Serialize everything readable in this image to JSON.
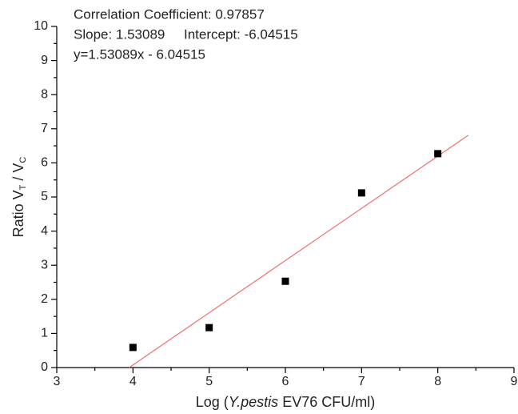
{
  "chart_data": {
    "type": "scatter",
    "annotations": [
      "Correlation Coefficient: 0.97857",
      "Slope: 1.53089     Intercept: -6.04515",
      "y=1.53089x - 6.04515"
    ],
    "xlabel": [
      "Log (",
      "Y.pestis",
      " EV76 CFU/ml)"
    ],
    "ylabel": [
      "Ratio  V",
      "T",
      " / V",
      "C"
    ],
    "x": [
      4,
      5,
      6,
      7,
      8
    ],
    "values": [
      0.59,
      1.17,
      2.53,
      5.12,
      6.27
    ],
    "color": "#000000",
    "fit_line": {
      "x": [
        3.95,
        8.4
      ],
      "y": [
        0,
        6.81
      ],
      "color": "#f07070"
    },
    "xlim": [
      3,
      9
    ],
    "xticks": [
      3,
      4,
      5,
      6,
      7,
      8,
      9
    ],
    "ylim": [
      0,
      10
    ],
    "yticks": [
      0,
      1,
      2,
      3,
      4,
      5,
      6,
      7,
      8,
      9,
      10
    ]
  }
}
